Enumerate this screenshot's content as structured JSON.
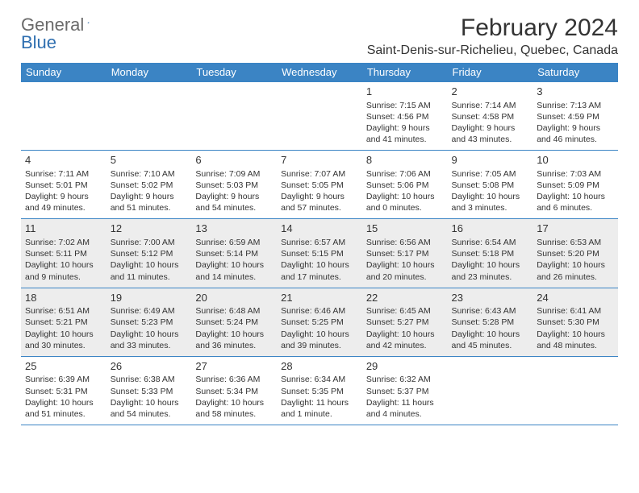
{
  "brand": {
    "part1": "General",
    "part2": "Blue"
  },
  "title": "February 2024",
  "location": "Saint-Denis-sur-Richelieu, Quebec, Canada",
  "colors": {
    "header_bg": "#3b84c4",
    "header_text": "#ffffff",
    "border": "#3b84c4",
    "shaded_bg": "#ededed",
    "text": "#333333",
    "logo_gray": "#6a6a6a",
    "logo_blue": "#2f6fb0",
    "page_bg": "#ffffff"
  },
  "day_headers": [
    "Sunday",
    "Monday",
    "Tuesday",
    "Wednesday",
    "Thursday",
    "Friday",
    "Saturday"
  ],
  "weeks": [
    [
      null,
      null,
      null,
      null,
      {
        "n": "1",
        "sr": "7:15 AM",
        "ss": "4:56 PM",
        "dl": "9 hours and 41 minutes."
      },
      {
        "n": "2",
        "sr": "7:14 AM",
        "ss": "4:58 PM",
        "dl": "9 hours and 43 minutes."
      },
      {
        "n": "3",
        "sr": "7:13 AM",
        "ss": "4:59 PM",
        "dl": "9 hours and 46 minutes."
      }
    ],
    [
      {
        "n": "4",
        "sr": "7:11 AM",
        "ss": "5:01 PM",
        "dl": "9 hours and 49 minutes."
      },
      {
        "n": "5",
        "sr": "7:10 AM",
        "ss": "5:02 PM",
        "dl": "9 hours and 51 minutes."
      },
      {
        "n": "6",
        "sr": "7:09 AM",
        "ss": "5:03 PM",
        "dl": "9 hours and 54 minutes."
      },
      {
        "n": "7",
        "sr": "7:07 AM",
        "ss": "5:05 PM",
        "dl": "9 hours and 57 minutes."
      },
      {
        "n": "8",
        "sr": "7:06 AM",
        "ss": "5:06 PM",
        "dl": "10 hours and 0 minutes."
      },
      {
        "n": "9",
        "sr": "7:05 AM",
        "ss": "5:08 PM",
        "dl": "10 hours and 3 minutes."
      },
      {
        "n": "10",
        "sr": "7:03 AM",
        "ss": "5:09 PM",
        "dl": "10 hours and 6 minutes."
      }
    ],
    [
      {
        "n": "11",
        "sr": "7:02 AM",
        "ss": "5:11 PM",
        "dl": "10 hours and 9 minutes."
      },
      {
        "n": "12",
        "sr": "7:00 AM",
        "ss": "5:12 PM",
        "dl": "10 hours and 11 minutes."
      },
      {
        "n": "13",
        "sr": "6:59 AM",
        "ss": "5:14 PM",
        "dl": "10 hours and 14 minutes."
      },
      {
        "n": "14",
        "sr": "6:57 AM",
        "ss": "5:15 PM",
        "dl": "10 hours and 17 minutes."
      },
      {
        "n": "15",
        "sr": "6:56 AM",
        "ss": "5:17 PM",
        "dl": "10 hours and 20 minutes."
      },
      {
        "n": "16",
        "sr": "6:54 AM",
        "ss": "5:18 PM",
        "dl": "10 hours and 23 minutes."
      },
      {
        "n": "17",
        "sr": "6:53 AM",
        "ss": "5:20 PM",
        "dl": "10 hours and 26 minutes."
      }
    ],
    [
      {
        "n": "18",
        "sr": "6:51 AM",
        "ss": "5:21 PM",
        "dl": "10 hours and 30 minutes."
      },
      {
        "n": "19",
        "sr": "6:49 AM",
        "ss": "5:23 PM",
        "dl": "10 hours and 33 minutes."
      },
      {
        "n": "20",
        "sr": "6:48 AM",
        "ss": "5:24 PM",
        "dl": "10 hours and 36 minutes."
      },
      {
        "n": "21",
        "sr": "6:46 AM",
        "ss": "5:25 PM",
        "dl": "10 hours and 39 minutes."
      },
      {
        "n": "22",
        "sr": "6:45 AM",
        "ss": "5:27 PM",
        "dl": "10 hours and 42 minutes."
      },
      {
        "n": "23",
        "sr": "6:43 AM",
        "ss": "5:28 PM",
        "dl": "10 hours and 45 minutes."
      },
      {
        "n": "24",
        "sr": "6:41 AM",
        "ss": "5:30 PM",
        "dl": "10 hours and 48 minutes."
      }
    ],
    [
      {
        "n": "25",
        "sr": "6:39 AM",
        "ss": "5:31 PM",
        "dl": "10 hours and 51 minutes."
      },
      {
        "n": "26",
        "sr": "6:38 AM",
        "ss": "5:33 PM",
        "dl": "10 hours and 54 minutes."
      },
      {
        "n": "27",
        "sr": "6:36 AM",
        "ss": "5:34 PM",
        "dl": "10 hours and 58 minutes."
      },
      {
        "n": "28",
        "sr": "6:34 AM",
        "ss": "5:35 PM",
        "dl": "11 hours and 1 minute."
      },
      {
        "n": "29",
        "sr": "6:32 AM",
        "ss": "5:37 PM",
        "dl": "11 hours and 4 minutes."
      },
      null,
      null
    ]
  ],
  "shaded_weeks": [
    2,
    3
  ],
  "labels": {
    "sunrise": "Sunrise: ",
    "sunset": "Sunset: ",
    "daylight": "Daylight: "
  }
}
